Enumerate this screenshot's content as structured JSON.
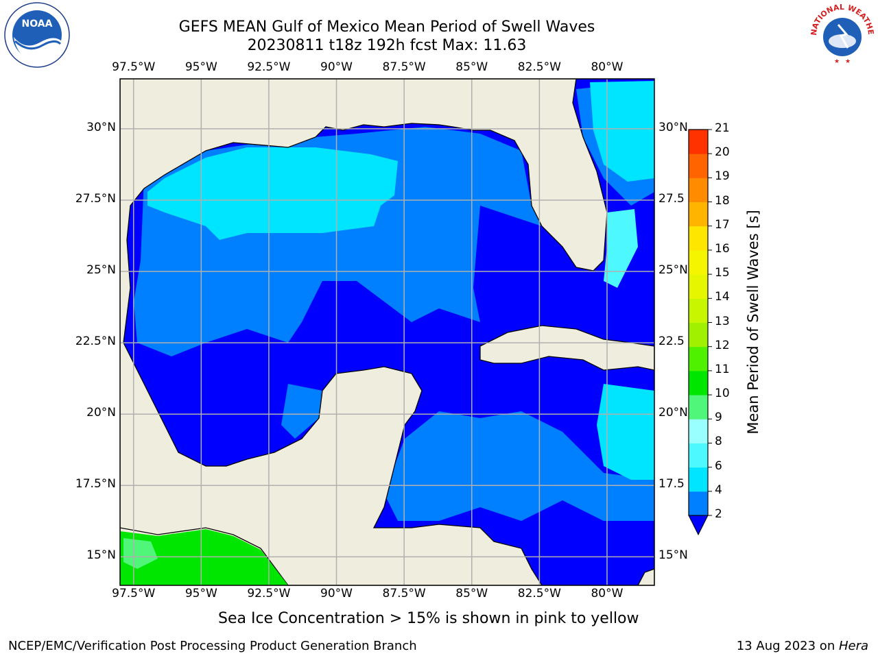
{
  "header": {
    "title_line1": "GEFS MEAN Gulf of Mexico Mean Period of Swell Waves",
    "title_line2": "20230811 t18z 192h fcst   Max: 11.63"
  },
  "logos": {
    "left": {
      "icon": "noaa-logo-icon",
      "text": "NOAA"
    },
    "right": {
      "icon": "nws-logo-icon",
      "ring_text": "NATIONAL WEATHER SERVICE"
    }
  },
  "map": {
    "lon_ticks": [
      "97.5°W",
      "95°W",
      "92.5°W",
      "90°W",
      "87.5°W",
      "85°W",
      "82.5°W",
      "80°W"
    ],
    "lon_values": [
      -97.5,
      -95,
      -92.5,
      -90,
      -87.5,
      -85,
      -82.5,
      -80
    ],
    "lat_ticks_left": [
      "30°N",
      "27.5°N",
      "25°N",
      "22.5°N",
      "20°N",
      "17.5°N",
      "15°N"
    ],
    "lat_ticks_right": [
      "30°N",
      "27.5",
      "25°N",
      "22.5",
      "20°N",
      "17.5",
      "15°N"
    ],
    "lat_values": [
      30,
      27.5,
      25,
      22.5,
      20,
      17.5,
      15
    ],
    "extent": {
      "lon_min": -98,
      "lon_max": -78.25,
      "lat_min": 14,
      "lat_max": 31.75
    },
    "land_color": "#efedde",
    "grid_color": "#b0b0b0"
  },
  "colorbar": {
    "title": "Mean Period of Swell Waves [s]",
    "levels": [
      "2",
      "4",
      "6",
      "8",
      "9",
      "10",
      "11",
      "12",
      "13",
      "14",
      "15",
      "16",
      "17",
      "18",
      "19",
      "20",
      "21"
    ],
    "colors": [
      "#0080ff",
      "#00e5ff",
      "#4df9ff",
      "#99ffff",
      "#50f67a",
      "#00e600",
      "#4ff000",
      "#a0f000",
      "#c8f500",
      "#e6f500",
      "#f5f500",
      "#ffe600",
      "#ffb400",
      "#ff8c00",
      "#ff6400",
      "#ff3200"
    ],
    "under_color": "#0000ff"
  },
  "footer": {
    "note": "Sea Ice Concentration > 15% is shown in pink to yellow",
    "left": "NCEP/EMC/Verification Post Processing Product Generation Branch",
    "right_prefix": "13 Aug 2023 on ",
    "right_italic": "Hera"
  }
}
